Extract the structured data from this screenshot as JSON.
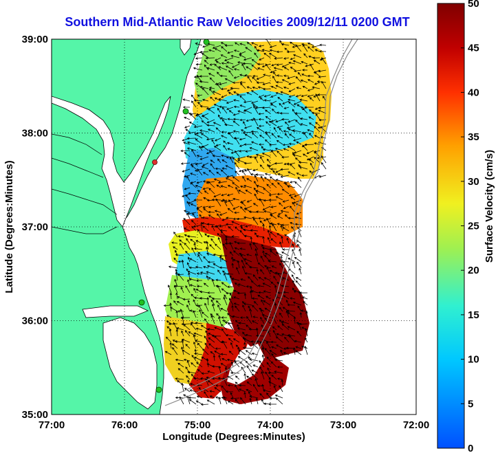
{
  "title": "Southern Mid-Atlantic Raw Velocities 2009/12/11 0200 GMT",
  "map": {
    "x_label": "Longitude (Degrees:Minutes)",
    "y_label": "Latitude (Degrees:Minutes)",
    "x_ticks": [
      "77:00",
      "76:00",
      "75:00",
      "74:00",
      "73:00",
      "72:00"
    ],
    "y_ticks": [
      "39:00",
      "38:00",
      "37:00",
      "36:00",
      "35:00"
    ],
    "lon_range": [
      -77,
      -72
    ],
    "lat_range": [
      35,
      39
    ],
    "grid": "dotted"
  },
  "colorbar": {
    "label": "Surface Velocity (cm/s)",
    "ticks": [
      "50",
      "45",
      "40",
      "35",
      "30",
      "25",
      "20",
      "15",
      "10",
      "5",
      "0"
    ],
    "range": [
      0,
      50
    ],
    "colors": [
      "#0060ff",
      "#00c8ff",
      "#40e8c0",
      "#90f060",
      "#e8f020",
      "#ffc000",
      "#ff7000",
      "#ff1000",
      "#c00000",
      "#800000"
    ]
  },
  "colors": {
    "land": "#55f5a8",
    "title": "#1010e0",
    "stations": "#20c020",
    "station_highlight": "#e03030"
  }
}
